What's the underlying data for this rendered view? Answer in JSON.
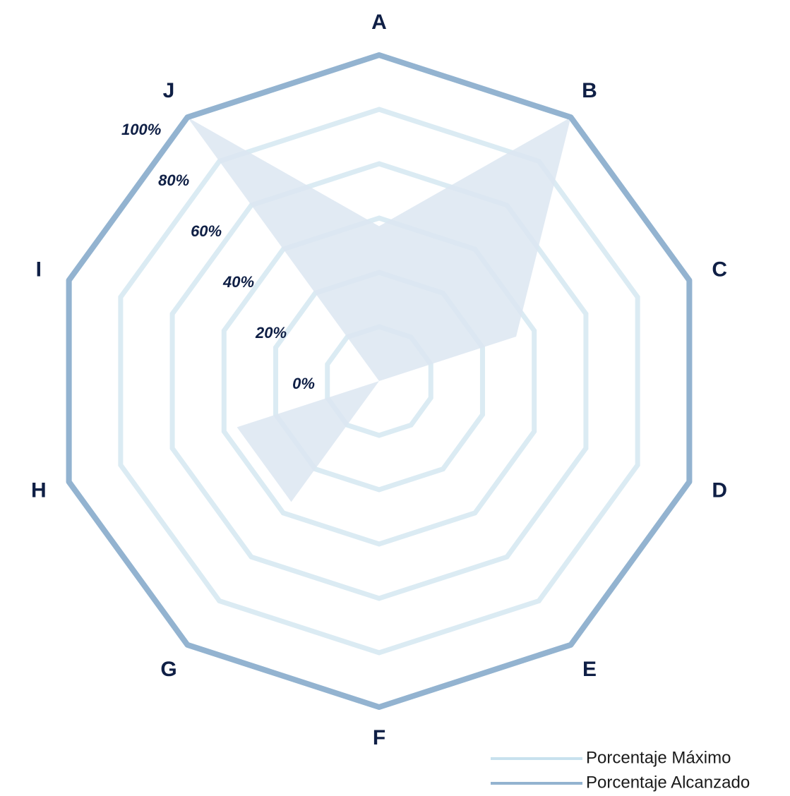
{
  "chart_data": {
    "type": "radar",
    "categories": [
      "A",
      "B",
      "C",
      "D",
      "E",
      "F",
      "G",
      "H",
      "I",
      "J"
    ],
    "ylim": [
      -20,
      100
    ],
    "yticks": [
      {
        "value": 0,
        "label": "0%"
      },
      {
        "value": 20,
        "label": "20%"
      },
      {
        "value": 40,
        "label": "40%"
      },
      {
        "value": 60,
        "label": "60%"
      },
      {
        "value": 80,
        "label": "80%"
      },
      {
        "value": 100,
        "label": "100%"
      }
    ],
    "grid": true,
    "grid_color": "#dbebf3",
    "series": [
      {
        "name": "Porcentaje Máximo",
        "color": "#c8e1ee",
        "values": [
          100,
          100,
          100,
          100,
          100,
          100,
          100,
          100,
          100,
          100
        ]
      },
      {
        "name": "Porcentaje Alcanzado",
        "color": "#93b3d0",
        "values": [
          100,
          100,
          100,
          100,
          100,
          100,
          100,
          100,
          100,
          100
        ]
      }
    ],
    "filled": {
      "color": "#dce6f1",
      "values": [
        37,
        100,
        33,
        -20,
        -20,
        -20,
        35,
        35,
        -20,
        100
      ]
    },
    "legend": "bottom-right"
  }
}
